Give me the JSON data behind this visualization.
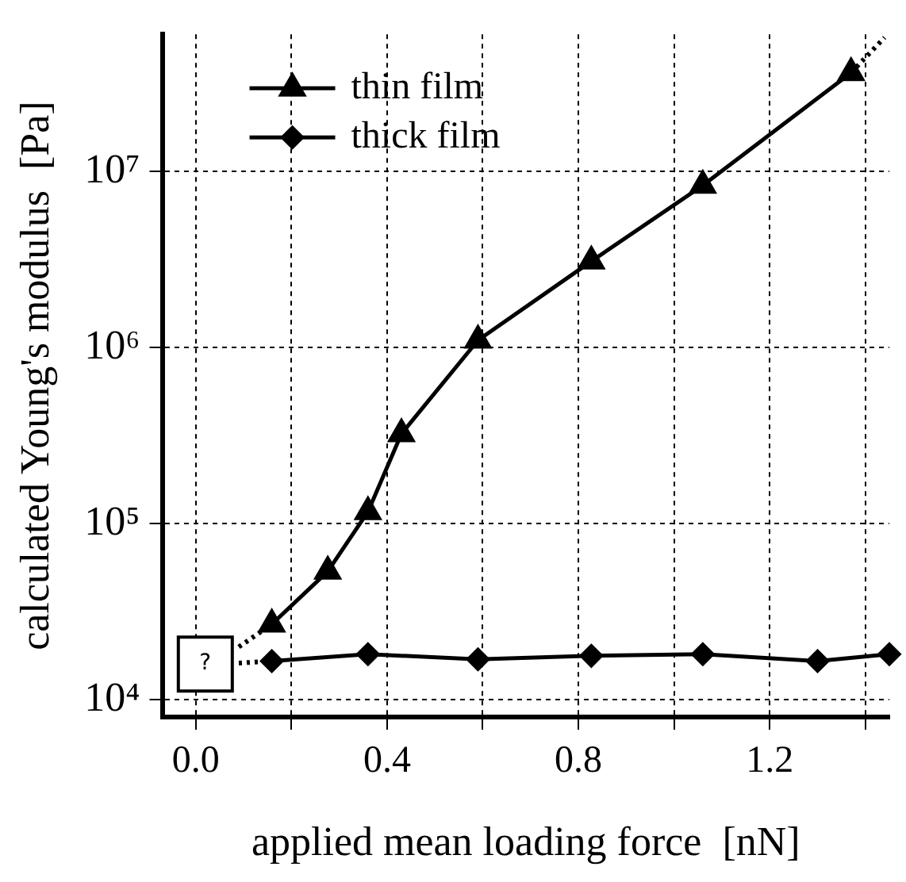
{
  "chart_data": {
    "type": "line",
    "xlabel": "applied mean loading force  [nN]",
    "ylabel": "calculated Young's modulus  [Pa]",
    "log": "y",
    "grid": true,
    "legend": "top left",
    "line_style": "solid",
    "xlim": [
      -0.07,
      1.45
    ],
    "xticks": [
      {
        "value": 0,
        "label": "0.0"
      },
      {
        "value": 0.2,
        "label": null
      },
      {
        "value": 0.4,
        "label": "0.4"
      },
      {
        "value": 0.6,
        "label": null
      },
      {
        "value": 0.8,
        "label": "0.8"
      },
      {
        "value": 1.0,
        "label": null
      },
      {
        "value": 1.2,
        "label": "1.2"
      },
      {
        "value": 1.4,
        "label": null
      }
    ],
    "ylim": [
      8000,
      60000000
    ],
    "yticks": [
      {
        "value": 10000,
        "label": "10⁴"
      },
      {
        "value": 100000,
        "label": "10⁵"
      },
      {
        "value": 1000000,
        "label": "10⁶"
      },
      {
        "value": 10000000,
        "label": "10⁷"
      }
    ],
    "series": [
      {
        "name": "thin film",
        "color": "#000000",
        "marker": "triangle",
        "x": [
          0.159,
          0.276,
          0.36,
          0.43,
          0.59,
          0.827,
          1.06,
          1.37
        ],
        "values": [
          26900,
          53700,
          117000,
          324000,
          1100000,
          3090000,
          8320000,
          36300000
        ]
      },
      {
        "name": "thick film",
        "color": "#000000",
        "marker": "diamond",
        "x": [
          0.159,
          0.36,
          0.59,
          0.827,
          1.06,
          1.3,
          1.45
        ],
        "values": [
          16600,
          18200,
          17000,
          17800,
          18200,
          16600,
          18200
        ]
      },
      {
        "color": "#000000",
        "marker": "none",
        "line_style": "dotted",
        "x": [
          0.09,
          0.159
        ],
        "values": [
          20000,
          26900
        ]
      },
      {
        "color": "#000000",
        "marker": "none",
        "line_style": "dotted",
        "x": [
          0.09,
          0.159
        ],
        "values": [
          16200,
          16600
        ]
      },
      {
        "color": "#000000",
        "marker": "none",
        "line_style": "dotted",
        "x": [
          1.37,
          1.44
        ],
        "values": [
          36300000,
          57500000
        ]
      }
    ],
    "annotations": [
      {
        "text": "?",
        "x": 0.02,
        "y": 16000
      }
    ]
  }
}
